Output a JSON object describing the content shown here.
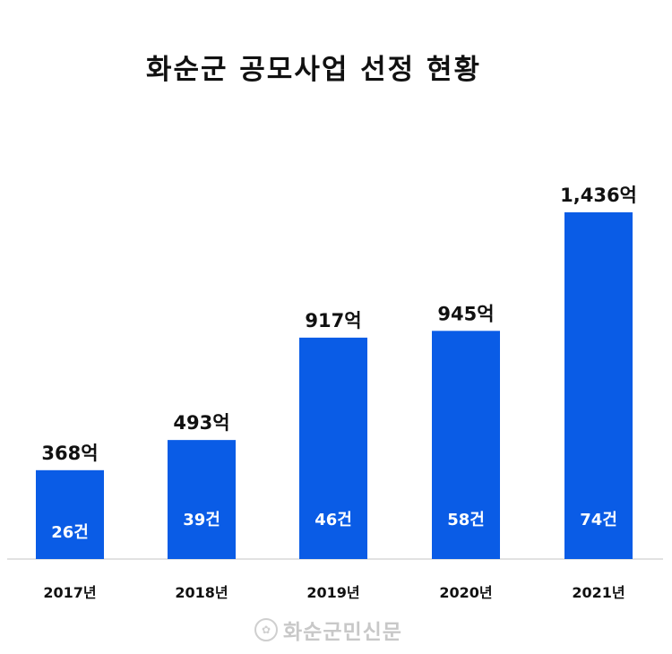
{
  "chart_data": {
    "type": "bar",
    "title": "화순군 공모사업 선정 현황",
    "categories": [
      "2017년",
      "2018년",
      "2019년",
      "2020년",
      "2021년"
    ],
    "values": [
      368,
      493,
      917,
      945,
      1436
    ],
    "value_labels": [
      "368억",
      "493억",
      "917억",
      "945억",
      "1,436억"
    ],
    "count_labels": [
      "26건",
      "39건",
      "46건",
      "58건",
      "74건"
    ],
    "ylim": [
      0,
      1500
    ],
    "grid": false,
    "bar_color": "#0a5ce6"
  },
  "watermark": {
    "text": "화순군민신문"
  }
}
